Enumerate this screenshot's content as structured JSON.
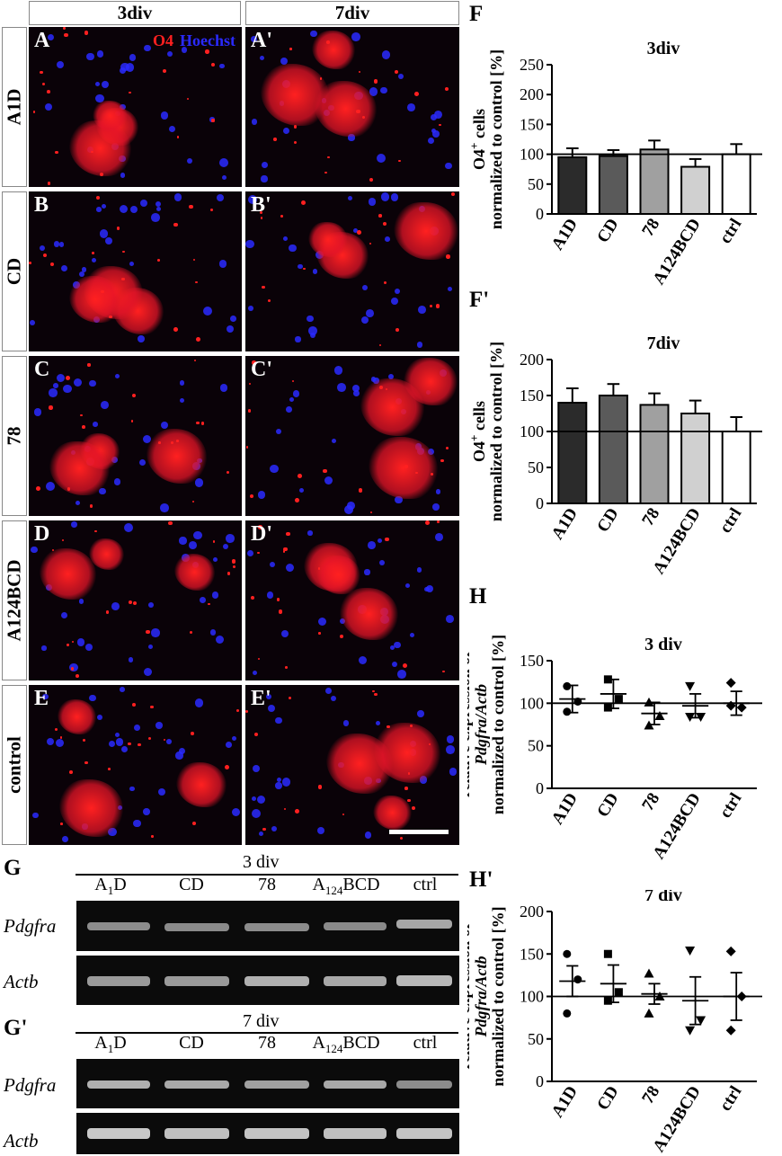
{
  "microscopy": {
    "columns": [
      "3div",
      "7div"
    ],
    "rows": [
      "A1D",
      "CD",
      "78",
      "A124BCD",
      "control"
    ],
    "panel_letters": [
      [
        "A",
        "A'"
      ],
      [
        "B",
        "B'"
      ],
      [
        "C",
        "C'"
      ],
      [
        "D",
        "D'"
      ],
      [
        "E",
        "E'"
      ]
    ],
    "stain": {
      "o4": "O4",
      "hoechst": "Hoechst"
    },
    "colors": {
      "o4": "#ff2020",
      "hoechst": "#2a2aff"
    }
  },
  "gels": [
    {
      "letter": "G",
      "title": "3 div",
      "lanes": [
        "A1D",
        "CD",
        "78",
        "A124BCD",
        "ctrl"
      ],
      "genes": [
        "Pdgfra",
        "Actb"
      ]
    },
    {
      "letter": "G'",
      "title": "7 div",
      "lanes": [
        "A1D",
        "CD",
        "78",
        "A124BCD",
        "ctrl"
      ],
      "genes": [
        "Pdgfra",
        "Actb"
      ]
    }
  ],
  "chart_data": [
    {
      "panel": "F",
      "type": "bar",
      "title": "3div",
      "ylabel": "O4+ cells normalized to control [%]",
      "categories": [
        "A1D",
        "CD",
        "78",
        "A124BCD",
        "ctrl"
      ],
      "values": [
        95,
        97,
        108,
        79,
        100
      ],
      "errors": [
        15,
        10,
        15,
        13,
        17
      ],
      "ylim": [
        0,
        250
      ],
      "yticks": [
        0,
        50,
        100,
        150,
        200,
        250
      ],
      "reference_line": 100,
      "bar_colors": [
        "#2b2b2b",
        "#5a5a5a",
        "#a0a0a0",
        "#d0d0d0",
        "#ffffff"
      ]
    },
    {
      "panel": "F'",
      "type": "bar",
      "title": "7div",
      "ylabel": "O4+ cells normalized to control [%]",
      "categories": [
        "A1D",
        "CD",
        "78",
        "A124BCD",
        "ctrl"
      ],
      "values": [
        140,
        150,
        137,
        125,
        100
      ],
      "errors": [
        20,
        16,
        16,
        18,
        20
      ],
      "ylim": [
        0,
        200
      ],
      "yticks": [
        0,
        50,
        100,
        150,
        200
      ],
      "reference_line": 100,
      "bar_colors": [
        "#2b2b2b",
        "#5a5a5a",
        "#a0a0a0",
        "#d0d0d0",
        "#ffffff"
      ]
    },
    {
      "panel": "H",
      "type": "scatter",
      "title": "3 div",
      "ylabel_lines": [
        "relative expression of",
        "Pdgfra/Actb",
        "normalized to control [%]"
      ],
      "categories": [
        "A1D",
        "CD",
        "78",
        "A124BCD",
        "ctrl"
      ],
      "points": [
        [
          120,
          102,
          90
        ],
        [
          128,
          105,
          95
        ],
        [
          101,
          85,
          74
        ],
        [
          120,
          84,
          84
        ],
        [
          124,
          95,
          97
        ]
      ],
      "means": [
        105,
        111,
        88,
        97,
        100
      ],
      "sems": [
        16,
        17,
        13,
        14,
        14
      ],
      "markers": [
        "circle",
        "square",
        "triangle-up",
        "triangle-down",
        "diamond"
      ],
      "ylim": [
        0,
        150
      ],
      "yticks": [
        0,
        50,
        100,
        150
      ],
      "reference_line": 100
    },
    {
      "panel": "H'",
      "type": "scatter",
      "title": "7 div",
      "ylabel_lines": [
        "relative expression of",
        "Pdgfra/Actb",
        "normalized to control [%]"
      ],
      "categories": [
        "A1D",
        "CD",
        "78",
        "A124BCD",
        "ctrl"
      ],
      "points": [
        [
          150,
          120,
          80
        ],
        [
          150,
          105,
          95
        ],
        [
          127,
          100,
          80
        ],
        [
          154,
          72,
          60
        ],
        [
          153,
          100,
          60
        ]
      ],
      "means": [
        118,
        115,
        103,
        95,
        100
      ],
      "sems": [
        18,
        22,
        12,
        28,
        28
      ],
      "markers": [
        "circle",
        "square",
        "triangle-up",
        "triangle-down",
        "diamond"
      ],
      "ylim": [
        0,
        200
      ],
      "yticks": [
        0,
        50,
        100,
        150,
        200
      ],
      "reference_line": 100
    }
  ]
}
